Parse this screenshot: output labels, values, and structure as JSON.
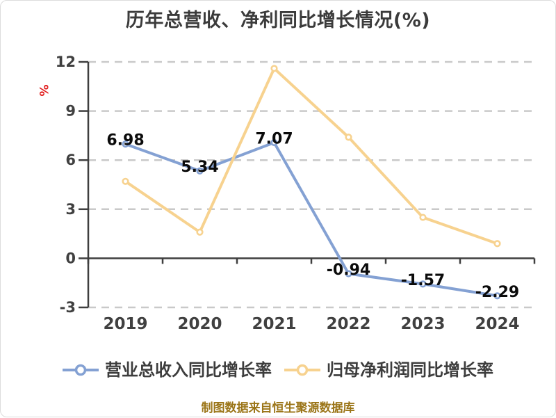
{
  "title": "历年总营收、净利同比增长情况(%)",
  "y_axis_unit": {
    "text": "%",
    "color": "#e11b1b"
  },
  "footer": "制图数据来自恒生聚源数据库",
  "styles": {
    "background": "#ffffff",
    "border_color": "#dcdcdc",
    "title_color": "#3b3b3b",
    "axis_color": "#3f3f3f",
    "axis_label_color": "#404040",
    "grid_color": "#c9c9c9",
    "data_label_color": "#0b0b0b",
    "legend_text_color": "#3d3d3d",
    "footer_color": "#9b7518",
    "marker_fill": "#ffffff"
  },
  "chart_data": {
    "type": "line",
    "title": "历年总营收、净利同比增长情况(%)",
    "categories": [
      "2019",
      "2020",
      "2021",
      "2022",
      "2023",
      "2024"
    ],
    "series": [
      {
        "name": "营业总收入同比增长率",
        "color": "#84a1d3",
        "values": [
          6.98,
          5.34,
          7.07,
          -0.94,
          -1.57,
          -2.29
        ],
        "labels": [
          "6.98",
          "5.34",
          "7.07",
          "-0.94",
          "-1.57",
          "-2.29"
        ]
      },
      {
        "name": "归母净利润同比增长率",
        "color": "#f7d28f",
        "values": [
          4.7,
          1.6,
          11.6,
          7.4,
          2.5,
          0.9
        ],
        "labels": null
      }
    ],
    "xlabel": "",
    "ylabel": "%",
    "ylim": [
      -3,
      12
    ],
    "yticks": [
      12,
      9,
      6,
      3,
      0,
      -3
    ],
    "grid": "horizontal dashed",
    "x_axis_on_zero": true,
    "legend_position": "bottom"
  }
}
